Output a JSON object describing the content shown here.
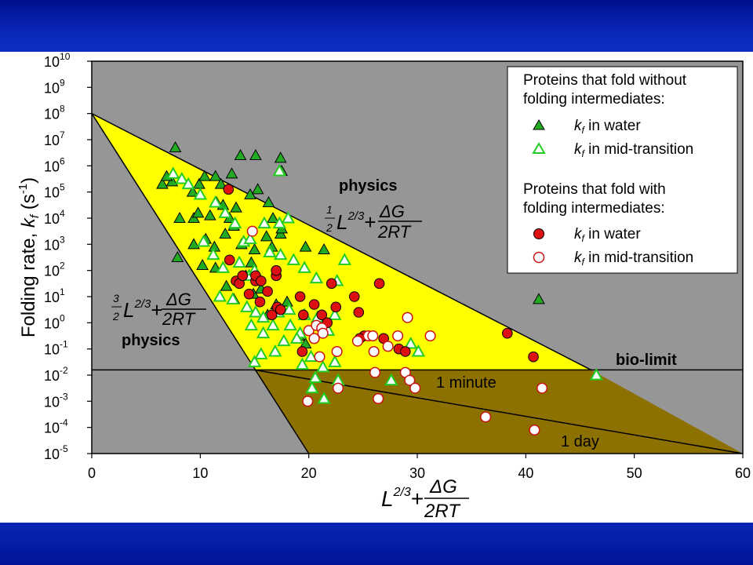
{
  "theme": {
    "band_color": "#0a24b0",
    "plot_background": "#969696",
    "fast_region_color": "#ffff00",
    "slow_region_color": "#8c7000",
    "triangle_fill": "#22aa22",
    "circle_fill": "#dd1111"
  },
  "chart_data": {
    "type": "scatter",
    "y_scale": "log10",
    "xlabel_parts": {
      "main": "L",
      "exp": "2/3",
      "plus": "+",
      "num": "ΔG",
      "den": "2RT"
    },
    "ylabel_parts": {
      "main": "Folding rate, ",
      "k": "k",
      "sub": "f",
      "unit_open": " (s",
      "unit_exp": "-1",
      "unit_close": ")"
    },
    "xlim": [
      0,
      60
    ],
    "ylim_log10": [
      -5,
      10
    ],
    "xticks": [
      "0",
      "10",
      "20",
      "30",
      "40",
      "50",
      "60"
    ],
    "ytick_base": "10",
    "ytick_exponents": [
      "10",
      "9",
      "8",
      "7",
      "6",
      "5",
      "4",
      "3",
      "2",
      "1",
      "0",
      "-1",
      "-2",
      "-3",
      "-4",
      "-5"
    ],
    "grid": false,
    "legend_position": "top-right",
    "legend": {
      "group1_title_line1": "Proteins that fold without",
      "group1_title_line2": "folding intermediates:",
      "group2_title_line1": "Proteins that fold with",
      "group2_title_line2": "folding intermediates:",
      "entry_k": "k",
      "entry_sub": "f",
      "entry_water": " in water",
      "entry_mid": " in mid-transition"
    },
    "boundaries": {
      "upper_line": {
        "x": [
          0,
          46
        ],
        "log10_y": [
          8,
          -1.8
        ]
      },
      "lower_line": {
        "x": [
          0,
          20
        ],
        "log10_y": [
          8,
          -5
        ]
      },
      "bio_limit_log10": -1.8,
      "slow_limit_line": {
        "x": [
          15,
          60
        ],
        "log10_y": [
          -1.8,
          -5
        ]
      }
    },
    "annotations": {
      "physics_upper": "physics",
      "physics_lower": "physics",
      "formula_upper_coef_num": "1",
      "formula_upper_coef_den": "2",
      "formula_lower_coef_num": "3",
      "formula_lower_coef_den": "2",
      "formula_L": "L",
      "formula_exp": "2/3",
      "formula_plus": "+",
      "formula_num": "ΔG",
      "formula_den": "2RT",
      "bio_limit": "bio-limit",
      "one_minute": "1 minute",
      "one_day": "1 day"
    },
    "series": [
      {
        "name": "kf in water (without intermediates)",
        "marker": "triangle-filled",
        "points": [
          [
            7.7,
            6.7
          ],
          [
            6.5,
            5.3
          ],
          [
            7.4,
            5.4
          ],
          [
            6.9,
            5.6
          ],
          [
            9.3,
            5.0
          ],
          [
            9.9,
            5.3
          ],
          [
            10.4,
            5.6
          ],
          [
            11.4,
            5.6
          ],
          [
            11.9,
            5.3
          ],
          [
            12.9,
            5.7
          ],
          [
            13.7,
            6.4
          ],
          [
            15.1,
            6.4
          ],
          [
            8.1,
            4.0
          ],
          [
            9.4,
            4.0
          ],
          [
            9.8,
            4.2
          ],
          [
            10.9,
            4.1
          ],
          [
            11.5,
            4.6
          ],
          [
            12.1,
            4.5
          ],
          [
            12.7,
            4.0
          ],
          [
            13.3,
            4.4
          ],
          [
            14.6,
            4.9
          ],
          [
            15.3,
            5.1
          ],
          [
            16.3,
            4.6
          ],
          [
            16.7,
            4.0
          ],
          [
            17.5,
            5.8
          ],
          [
            17.4,
            6.3
          ],
          [
            7.9,
            2.5
          ],
          [
            9.4,
            3.0
          ],
          [
            10.5,
            3.2
          ],
          [
            11.3,
            2.9
          ],
          [
            12.3,
            3.4
          ],
          [
            13.1,
            3.7
          ],
          [
            13.8,
            3.0
          ],
          [
            14.7,
            2.3
          ],
          [
            15.0,
            2.8
          ],
          [
            16.1,
            3.3
          ],
          [
            16.6,
            2.9
          ],
          [
            17.4,
            3.4
          ],
          [
            17.5,
            3.6
          ],
          [
            19.7,
            2.9
          ],
          [
            21.4,
            2.8
          ],
          [
            10.2,
            2.2
          ],
          [
            11.4,
            2.1
          ],
          [
            12.4,
            1.4
          ],
          [
            13.1,
            0.9
          ],
          [
            14.2,
            1.8
          ],
          [
            14.9,
            1.1
          ],
          [
            15.6,
            1.3
          ],
          [
            16.2,
            0.3
          ],
          [
            17.0,
            0.7
          ],
          [
            18.0,
            0.8
          ],
          [
            19.1,
            -0.5
          ],
          [
            19.7,
            -0.8
          ],
          [
            41.2,
            0.9
          ]
        ]
      },
      {
        "name": "kf in mid-transition (without intermediates)",
        "marker": "triangle-open",
        "points": [
          [
            7.5,
            5.7
          ],
          [
            8.3,
            5.5
          ],
          [
            8.9,
            5.3
          ],
          [
            10.0,
            4.9
          ],
          [
            11.4,
            4.6
          ],
          [
            12.3,
            4.2
          ],
          [
            13.2,
            3.8
          ],
          [
            14.0,
            3.1
          ],
          [
            14.6,
            3.2
          ],
          [
            15.9,
            3.8
          ],
          [
            17.3,
            3.8
          ],
          [
            18.1,
            4.0
          ],
          [
            17.3,
            5.8
          ],
          [
            10.3,
            3.1
          ],
          [
            11.2,
            2.6
          ],
          [
            12.1,
            2.1
          ],
          [
            13.6,
            2.3
          ],
          [
            14.5,
            1.8
          ],
          [
            15.0,
            2.0
          ],
          [
            16.4,
            2.7
          ],
          [
            17.4,
            2.6
          ],
          [
            18.6,
            2.4
          ],
          [
            19.6,
            2.1
          ],
          [
            20.7,
            1.7
          ],
          [
            22.6,
            1.6
          ],
          [
            23.3,
            2.4
          ],
          [
            11.8,
            1.0
          ],
          [
            13.0,
            0.9
          ],
          [
            14.3,
            0.6
          ],
          [
            15.1,
            0.4
          ],
          [
            15.8,
            0.2
          ],
          [
            16.7,
            -0.1
          ],
          [
            17.2,
            0.4
          ],
          [
            18.2,
            0.5
          ],
          [
            18.3,
            -0.1
          ],
          [
            19.2,
            -0.4
          ],
          [
            19.6,
            0.3
          ],
          [
            20.8,
            0.2
          ],
          [
            21.8,
            -0.3
          ],
          [
            22.4,
            0.3
          ],
          [
            14.7,
            -0.1
          ],
          [
            15.8,
            -0.4
          ],
          [
            16.9,
            -1.1
          ],
          [
            17.7,
            -0.7
          ],
          [
            18.9,
            -0.6
          ],
          [
            19.4,
            -1.6
          ],
          [
            20.2,
            -1.3
          ],
          [
            20.6,
            -2.1
          ],
          [
            21.3,
            -1.7
          ],
          [
            22.4,
            -1.5
          ],
          [
            22.7,
            -2.2
          ],
          [
            15.0,
            -1.5
          ],
          [
            15.6,
            -1.2
          ],
          [
            20.3,
            -2.5
          ],
          [
            21.4,
            -2.9
          ],
          [
            27.6,
            -2.2
          ],
          [
            29.4,
            -0.8
          ],
          [
            30.1,
            -1.1
          ],
          [
            46.5,
            -2.0
          ]
        ]
      },
      {
        "name": "kf in water (with intermediates)",
        "marker": "circle-filled",
        "points": [
          [
            12.6,
            5.1
          ],
          [
            12.7,
            2.4
          ],
          [
            13.3,
            1.6
          ],
          [
            13.6,
            1.5
          ],
          [
            13.9,
            1.8
          ],
          [
            14.5,
            1.1
          ],
          [
            15.1,
            1.6
          ],
          [
            15.1,
            1.8
          ],
          [
            15.6,
            1.6
          ],
          [
            15.5,
            0.8
          ],
          [
            16.2,
            1.2
          ],
          [
            17.0,
            1.8
          ],
          [
            17.0,
            2.0
          ],
          [
            17.1,
            0.6
          ],
          [
            17.4,
            0.5
          ],
          [
            19.2,
            1.0
          ],
          [
            19.5,
            0.3
          ],
          [
            20.5,
            0.7
          ],
          [
            21.2,
            0.3
          ],
          [
            21.7,
            0.0
          ],
          [
            22.1,
            1.5
          ],
          [
            22.5,
            0.6
          ],
          [
            24.2,
            1.0
          ],
          [
            24.6,
            0.4
          ],
          [
            26.5,
            1.5
          ],
          [
            25.1,
            -0.5
          ],
          [
            24.7,
            -0.6
          ],
          [
            26.9,
            -0.6
          ],
          [
            28.3,
            -1.0
          ],
          [
            28.9,
            -1.1
          ],
          [
            38.3,
            -0.4
          ],
          [
            40.7,
            -1.3
          ],
          [
            19.4,
            -1.1
          ],
          [
            16.6,
            0.3
          ]
        ]
      },
      {
        "name": "kf in mid-transition (with intermediates)",
        "marker": "circle-open",
        "points": [
          [
            14.8,
            3.5
          ],
          [
            20.0,
            -0.3
          ],
          [
            20.5,
            -0.6
          ],
          [
            20.7,
            -0.1
          ],
          [
            21.0,
            -1.3
          ],
          [
            21.2,
            -0.2
          ],
          [
            21.3,
            -0.4
          ],
          [
            22.6,
            -1.1
          ],
          [
            24.5,
            -0.7
          ],
          [
            25.5,
            -0.5
          ],
          [
            25.9,
            -0.5
          ],
          [
            26.0,
            -1.1
          ],
          [
            27.3,
            -0.9
          ],
          [
            28.2,
            -0.5
          ],
          [
            26.1,
            -1.9
          ],
          [
            26.4,
            -2.9
          ],
          [
            28.9,
            -1.9
          ],
          [
            29.3,
            -2.2
          ],
          [
            29.8,
            -2.5
          ],
          [
            29.1,
            0.2
          ],
          [
            31.2,
            -0.5
          ],
          [
            19.9,
            -3.0
          ],
          [
            36.3,
            -3.6
          ],
          [
            40.8,
            -4.1
          ],
          [
            41.5,
            -2.5
          ],
          [
            22.7,
            -2.5
          ]
        ]
      }
    ]
  }
}
